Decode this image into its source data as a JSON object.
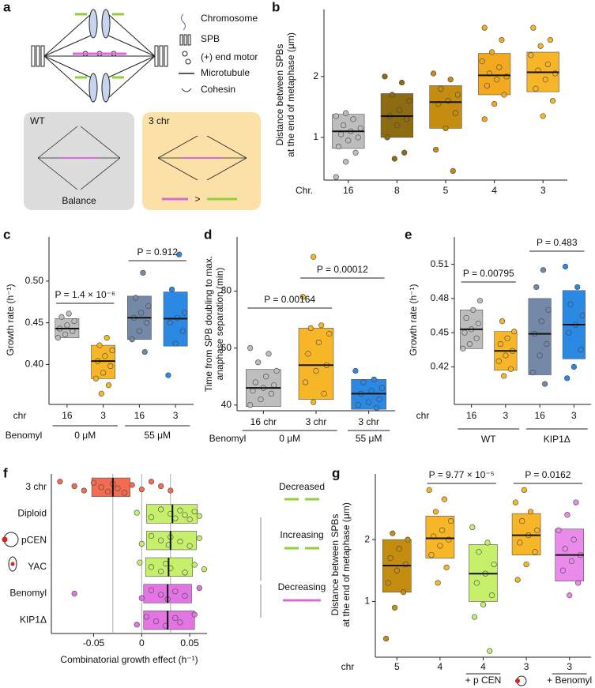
{
  "panels": [
    "a",
    "b",
    "c",
    "d",
    "e",
    "f",
    "g"
  ],
  "diagram": {
    "legend": [
      "Chromosome",
      "SPB",
      "(+) end motor",
      "Microtubule",
      "Cohesin"
    ],
    "boxes": [
      "WT",
      "3 chr"
    ],
    "caption": "Balance",
    "comparison": ">"
  },
  "chart_data": [
    {
      "type": "box",
      "ylabel": [
        "Distance between SPBs",
        "at the end of metaphase (μm)"
      ],
      "xlabel": "Chr.",
      "categories": [
        "16",
        "8",
        "5",
        "4",
        "3"
      ],
      "colors": [
        "#bdbdbd",
        "#8c6b12",
        "#c48d10",
        "#f2a91f",
        "#f7b528"
      ],
      "q1": [
        0.82,
        1.0,
        1.15,
        1.7,
        1.75
      ],
      "median": [
        1.1,
        1.35,
        1.58,
        2.02,
        2.07
      ],
      "q3": [
        1.38,
        1.72,
        1.85,
        2.38,
        2.4
      ],
      "points": [
        [
          0.35,
          0.6,
          0.75,
          0.85,
          0.95,
          1.0,
          1.05,
          1.1,
          1.15,
          1.2,
          1.3,
          1.35,
          1.4
        ],
        [
          0.65,
          0.75,
          1.0,
          1.2,
          1.3,
          1.35,
          1.45,
          1.6,
          1.7,
          1.9,
          2.0
        ],
        [
          0.45,
          0.8,
          1.15,
          1.4,
          1.55,
          1.6,
          1.7,
          1.8,
          1.95,
          2.05
        ],
        [
          1.3,
          1.55,
          1.7,
          1.85,
          1.95,
          2.0,
          2.05,
          2.15,
          2.25,
          2.4,
          2.6,
          2.8
        ],
        [
          1.35,
          1.6,
          1.8,
          1.95,
          2.05,
          2.1,
          2.2,
          2.35,
          2.5,
          2.6,
          2.8
        ]
      ],
      "ylim": [
        0.3,
        3.1
      ],
      "yticks": [
        1,
        2
      ]
    },
    {
      "type": "box",
      "ylabel": [
        "Growth rate (h⁻¹)"
      ],
      "xlabel": "chr",
      "group_title": "Benomyl",
      "categories": [
        "16",
        "3",
        "16",
        "3"
      ],
      "groups": [
        "0 μM",
        "55 μM"
      ],
      "colors": [
        "#bdbdbd",
        "#f7b528",
        "#7489a8",
        "#2b88e3"
      ],
      "q1": [
        0.432,
        0.383,
        0.43,
        0.422
      ],
      "median": [
        0.443,
        0.404,
        0.456,
        0.455
      ],
      "q3": [
        0.455,
        0.423,
        0.482,
        0.487
      ],
      "points": [
        [
          0.432,
          0.436,
          0.44,
          0.443,
          0.447,
          0.452,
          0.457,
          0.461
        ],
        [
          0.365,
          0.375,
          0.383,
          0.39,
          0.398,
          0.404,
          0.41,
          0.417,
          0.423,
          0.432
        ],
        [
          0.415,
          0.43,
          0.44,
          0.45,
          0.456,
          0.462,
          0.47,
          0.48,
          0.51
        ],
        [
          0.387,
          0.425,
          0.44,
          0.45,
          0.456,
          0.462,
          0.49,
          0.532
        ]
      ],
      "annotations": [
        "P = 1.4 × 10⁻⁶",
        "P = 0.912"
      ],
      "ylim": [
        0.352,
        0.553
      ],
      "yticks": [
        {
          "value": 0.4,
          "label": "0.40"
        },
        {
          "value": 0.45,
          "label": "0.45"
        },
        {
          "value": 0.5,
          "label": "0.50"
        }
      ]
    },
    {
      "type": "box",
      "ylabel": [
        "Time from SPB doubling to max.",
        "anaphase separation (min)"
      ],
      "group_title": "Benomyl",
      "categories": [
        "16 chr",
        "3 chr",
        "3 chr"
      ],
      "groups": [
        "0 μM",
        "55 μM"
      ],
      "colors": [
        "#bdbdbd",
        "#f7b528",
        "#2b88e3"
      ],
      "q1": [
        39.5,
        42,
        38.5
      ],
      "median": [
        46,
        54,
        44
      ],
      "q3": [
        52.5,
        67,
        49
      ],
      "points": [
        [
          40,
          42,
          44,
          45,
          46,
          47,
          48,
          50,
          52,
          55,
          58,
          60
        ],
        [
          41,
          44,
          48,
          52,
          54,
          58,
          62,
          65,
          67,
          68,
          78,
          92
        ],
        [
          39,
          40,
          41,
          42,
          44,
          45,
          46,
          48,
          49,
          52
        ]
      ],
      "annotations": [
        "P = 0.00164",
        "P = 0.00012"
      ],
      "ylim": [
        38,
        99
      ],
      "yticks": [
        40,
        60,
        80
      ]
    },
    {
      "type": "box",
      "ylabel": [
        "Growth rate (h⁻¹)"
      ],
      "xlabel": "chr",
      "categories": [
        "16",
        "3",
        "16",
        "3"
      ],
      "groups": [
        "WT",
        "KIP1Δ"
      ],
      "colors": [
        "#bdbdbd",
        "#f7b528",
        "#7489a8",
        "#2b88e3"
      ],
      "q1": [
        0.436,
        0.417,
        0.413,
        0.427
      ],
      "median": [
        0.453,
        0.434,
        0.449,
        0.457
      ],
      "q3": [
        0.47,
        0.451,
        0.48,
        0.487
      ],
      "points": [
        [
          0.436,
          0.44,
          0.445,
          0.45,
          0.453,
          0.458,
          0.463,
          0.47,
          0.478
        ],
        [
          0.412,
          0.418,
          0.425,
          0.43,
          0.434,
          0.44,
          0.445,
          0.451,
          0.46
        ],
        [
          0.405,
          0.415,
          0.43,
          0.44,
          0.449,
          0.46,
          0.47,
          0.49,
          0.505
        ],
        [
          0.41,
          0.42,
          0.435,
          0.45,
          0.457,
          0.465,
          0.475,
          0.49,
          0.508
        ]
      ],
      "annotations": [
        "P = 0.00795",
        "P = 0.483"
      ],
      "ylim": [
        0.387,
        0.534
      ],
      "yticks": [
        0.42,
        0.45,
        0.48,
        0.51
      ]
    },
    {
      "type": "hbox",
      "xlabel": "Combinatorial growth effect (h⁻¹)",
      "categories": [
        "3 chr",
        "Diploid",
        "pCEN",
        "YAC",
        "Benomyl",
        "KIP1Δ"
      ],
      "colors": [
        "#f26c52",
        "#c6f06c",
        "#c6f06c",
        "#c6f06c",
        "#e274e4",
        "#e274e4"
      ],
      "q1": [
        -0.052,
        0.005,
        0.005,
        0.004,
        0.002,
        0.002
      ],
      "median": [
        -0.03,
        0.032,
        0.03,
        0.028,
        0.027,
        0.027
      ],
      "q3": [
        -0.012,
        0.058,
        0.057,
        0.053,
        0.052,
        0.055
      ],
      "points": [
        [
          -0.085,
          -0.07,
          -0.06,
          -0.05,
          -0.042,
          -0.035,
          -0.03,
          -0.025,
          -0.018,
          -0.01,
          0,
          0.01,
          0.02,
          0.03
        ],
        [
          -0.005,
          0.01,
          0.02,
          0.03,
          0.035,
          0.04,
          0.045,
          0.05,
          0.055,
          0.06
        ],
        [
          0,
          0.01,
          0.02,
          0.028,
          0.03,
          0.04,
          0.05,
          0.06
        ],
        [
          -0.002,
          0.01,
          0.02,
          0.025,
          0.03,
          0.045,
          0.055,
          0.065
        ],
        [
          -0.07,
          0,
          0.01,
          0.02,
          0.027,
          0.035,
          0.045,
          0.06
        ],
        [
          -0.005,
          0.005,
          0.015,
          0.025,
          0.035,
          0.04,
          0.055
        ]
      ],
      "reference_lines": [
        -0.03,
        0,
        0.03
      ],
      "side_labels": [
        "Decreased",
        "Increasing",
        "Decreasing"
      ],
      "xlim": [
        -0.094,
        0.068
      ],
      "xticks": [
        -0.05,
        0,
        0.05
      ]
    },
    {
      "type": "box",
      "ylabel": [
        "Distance between SPBs",
        "at the end of metaphase (μm)"
      ],
      "xlabel": "chr",
      "categories": [
        "5",
        "4",
        "4",
        "3",
        "3"
      ],
      "groups": [
        "+ p CEN",
        "+ Benomyl"
      ],
      "colors": [
        "#c48d10",
        "#f7b528",
        "#c6f06c",
        "#f7b528",
        "#ea8aea"
      ],
      "q1": [
        1.15,
        1.7,
        1.0,
        1.75,
        1.33
      ],
      "median": [
        1.58,
        2.02,
        1.45,
        2.07,
        1.75
      ],
      "q3": [
        2.0,
        2.38,
        1.92,
        2.42,
        2.17
      ],
      "points": [
        [
          0.4,
          0.9,
          1.15,
          1.3,
          1.5,
          1.6,
          1.7,
          1.85,
          2.0,
          2.1
        ],
        [
          1.3,
          1.55,
          1.75,
          1.9,
          2.0,
          2.05,
          2.15,
          2.3,
          2.45,
          2.65,
          2.8
        ],
        [
          0.2,
          0.75,
          0.95,
          1.1,
          1.3,
          1.45,
          1.6,
          1.8,
          1.95,
          2.2
        ],
        [
          1.35,
          1.6,
          1.8,
          1.95,
          2.07,
          2.15,
          2.3,
          2.45,
          2.6,
          2.8
        ],
        [
          1.1,
          1.3,
          1.5,
          1.65,
          1.75,
          1.85,
          2.0,
          2.15,
          2.4,
          2.6
        ]
      ],
      "annotations": [
        "P = 9.77 × 10⁻⁵",
        "P = 0.0162"
      ],
      "ylim": [
        0.1,
        3.06
      ],
      "yticks": [
        1,
        2
      ]
    }
  ]
}
